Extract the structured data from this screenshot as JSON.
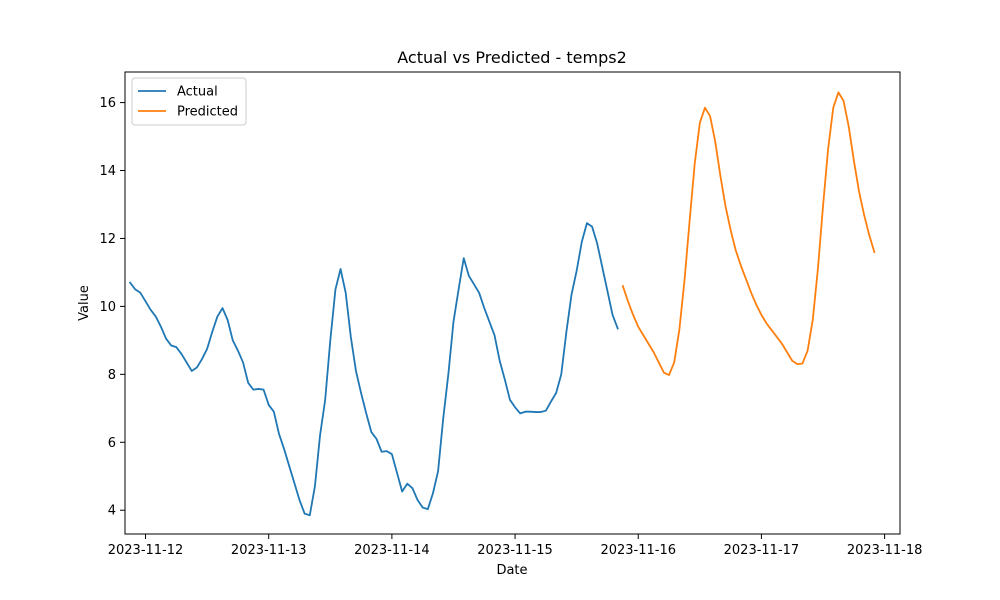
{
  "chart_data": {
    "type": "line",
    "title": "Actual vs Predicted - temps2",
    "xlabel": "Date",
    "ylabel": "Value",
    "xlim": [
      "2023-11-11T20:00",
      "2023-11-18T03:00"
    ],
    "ylim": [
      3.3,
      16.9
    ],
    "x_ticks": [
      "2023-11-12",
      "2023-11-13",
      "2023-11-14",
      "2023-11-15",
      "2023-11-16",
      "2023-11-17",
      "2023-11-18"
    ],
    "y_ticks": [
      4,
      6,
      8,
      10,
      12,
      14,
      16
    ],
    "grid": false,
    "legend_position": "upper-left",
    "series": [
      {
        "name": "Actual",
        "color": "#1f77b4",
        "points": [
          [
            "2023-11-11T21:00",
            10.7
          ],
          [
            "2023-11-11T22:00",
            10.5
          ],
          [
            "2023-11-11T23:00",
            10.4
          ],
          [
            "2023-11-12T00:00",
            10.15
          ],
          [
            "2023-11-12T01:00",
            9.9
          ],
          [
            "2023-11-12T02:00",
            9.7
          ],
          [
            "2023-11-12T03:00",
            9.4
          ],
          [
            "2023-11-12T04:00",
            9.05
          ],
          [
            "2023-11-12T05:00",
            8.85
          ],
          [
            "2023-11-12T06:00",
            8.8
          ],
          [
            "2023-11-12T07:00",
            8.6
          ],
          [
            "2023-11-12T08:00",
            8.35
          ],
          [
            "2023-11-12T09:00",
            8.1
          ],
          [
            "2023-11-12T10:00",
            8.2
          ],
          [
            "2023-11-12T11:00",
            8.45
          ],
          [
            "2023-11-12T12:00",
            8.75
          ],
          [
            "2023-11-12T13:00",
            9.25
          ],
          [
            "2023-11-12T14:00",
            9.7
          ],
          [
            "2023-11-12T15:00",
            9.95
          ],
          [
            "2023-11-12T16:00",
            9.6
          ],
          [
            "2023-11-12T17:00",
            9.0
          ],
          [
            "2023-11-12T18:00",
            8.7
          ],
          [
            "2023-11-12T19:00",
            8.35
          ],
          [
            "2023-11-12T20:00",
            7.75
          ],
          [
            "2023-11-12T21:00",
            7.55
          ],
          [
            "2023-11-12T22:00",
            7.57
          ],
          [
            "2023-11-12T23:00",
            7.55
          ],
          [
            "2023-11-13T00:00",
            7.1
          ],
          [
            "2023-11-13T01:00",
            6.9
          ],
          [
            "2023-11-13T02:00",
            6.25
          ],
          [
            "2023-11-13T03:00",
            5.8
          ],
          [
            "2023-11-13T04:00",
            5.3
          ],
          [
            "2023-11-13T05:00",
            4.8
          ],
          [
            "2023-11-13T06:00",
            4.3
          ],
          [
            "2023-11-13T07:00",
            3.9
          ],
          [
            "2023-11-13T08:00",
            3.85
          ],
          [
            "2023-11-13T09:00",
            4.7
          ],
          [
            "2023-11-13T10:00",
            6.2
          ],
          [
            "2023-11-13T11:00",
            7.25
          ],
          [
            "2023-11-13T12:00",
            9.0
          ],
          [
            "2023-11-13T13:00",
            10.5
          ],
          [
            "2023-11-13T14:00",
            11.1
          ],
          [
            "2023-11-13T15:00",
            10.4
          ],
          [
            "2023-11-13T16:00",
            9.1
          ],
          [
            "2023-11-13T17:00",
            8.1
          ],
          [
            "2023-11-13T18:00",
            7.45
          ],
          [
            "2023-11-13T19:00",
            6.85
          ],
          [
            "2023-11-13T20:00",
            6.3
          ],
          [
            "2023-11-13T21:00",
            6.1
          ],
          [
            "2023-11-13T22:00",
            5.72
          ],
          [
            "2023-11-13T23:00",
            5.74
          ],
          [
            "2023-11-14T00:00",
            5.65
          ],
          [
            "2023-11-14T01:00",
            5.1
          ],
          [
            "2023-11-14T02:00",
            4.55
          ],
          [
            "2023-11-14T03:00",
            4.78
          ],
          [
            "2023-11-14T04:00",
            4.65
          ],
          [
            "2023-11-14T05:00",
            4.3
          ],
          [
            "2023-11-14T06:00",
            4.08
          ],
          [
            "2023-11-14T07:00",
            4.03
          ],
          [
            "2023-11-14T08:00",
            4.5
          ],
          [
            "2023-11-14T09:00",
            5.15
          ],
          [
            "2023-11-14T10:00",
            6.7
          ],
          [
            "2023-11-14T11:00",
            8.0
          ],
          [
            "2023-11-14T12:00",
            9.55
          ],
          [
            "2023-11-14T13:00",
            10.5
          ],
          [
            "2023-11-14T14:00",
            11.42
          ],
          [
            "2023-11-14T15:00",
            10.9
          ],
          [
            "2023-11-14T16:00",
            10.65
          ],
          [
            "2023-11-14T17:00",
            10.4
          ],
          [
            "2023-11-14T18:00",
            9.95
          ],
          [
            "2023-11-14T19:00",
            9.55
          ],
          [
            "2023-11-14T20:00",
            9.15
          ],
          [
            "2023-11-14T21:00",
            8.4
          ],
          [
            "2023-11-14T22:00",
            7.85
          ],
          [
            "2023-11-14T23:00",
            7.25
          ],
          [
            "2023-11-15T00:00",
            7.03
          ],
          [
            "2023-11-15T01:00",
            6.85
          ],
          [
            "2023-11-15T02:00",
            6.9
          ],
          [
            "2023-11-15T03:00",
            6.9
          ],
          [
            "2023-11-15T04:00",
            6.89
          ],
          [
            "2023-11-15T05:00",
            6.89
          ],
          [
            "2023-11-15T06:00",
            6.93
          ],
          [
            "2023-11-15T07:00",
            7.2
          ],
          [
            "2023-11-15T08:00",
            7.45
          ],
          [
            "2023-11-15T09:00",
            8.0
          ],
          [
            "2023-11-15T10:00",
            9.25
          ],
          [
            "2023-11-15T11:00",
            10.35
          ],
          [
            "2023-11-15T12:00",
            11.05
          ],
          [
            "2023-11-15T13:00",
            11.9
          ],
          [
            "2023-11-15T14:00",
            12.45
          ],
          [
            "2023-11-15T15:00",
            12.35
          ],
          [
            "2023-11-15T16:00",
            11.85
          ],
          [
            "2023-11-15T17:00",
            11.15
          ],
          [
            "2023-11-15T18:00",
            10.45
          ],
          [
            "2023-11-15T19:00",
            9.75
          ],
          [
            "2023-11-15T20:00",
            9.35
          ]
        ]
      },
      {
        "name": "Predicted",
        "color": "#ff7f0e",
        "points": [
          [
            "2023-11-15T21:00",
            10.6
          ],
          [
            "2023-11-15T22:00",
            10.15
          ],
          [
            "2023-11-15T23:00",
            9.75
          ],
          [
            "2023-11-16T00:00",
            9.4
          ],
          [
            "2023-11-16T01:00",
            9.15
          ],
          [
            "2023-11-16T02:00",
            8.9
          ],
          [
            "2023-11-16T03:00",
            8.65
          ],
          [
            "2023-11-16T04:00",
            8.35
          ],
          [
            "2023-11-16T05:00",
            8.05
          ],
          [
            "2023-11-16T06:00",
            7.98
          ],
          [
            "2023-11-16T07:00",
            8.35
          ],
          [
            "2023-11-16T08:00",
            9.3
          ],
          [
            "2023-11-16T09:00",
            10.75
          ],
          [
            "2023-11-16T10:00",
            12.5
          ],
          [
            "2023-11-16T11:00",
            14.2
          ],
          [
            "2023-11-16T12:00",
            15.4
          ],
          [
            "2023-11-16T13:00",
            15.85
          ],
          [
            "2023-11-16T14:00",
            15.6
          ],
          [
            "2023-11-16T15:00",
            14.85
          ],
          [
            "2023-11-16T16:00",
            13.85
          ],
          [
            "2023-11-16T17:00",
            12.95
          ],
          [
            "2023-11-16T18:00",
            12.25
          ],
          [
            "2023-11-16T19:00",
            11.65
          ],
          [
            "2023-11-16T20:00",
            11.2
          ],
          [
            "2023-11-16T21:00",
            10.8
          ],
          [
            "2023-11-16T22:00",
            10.4
          ],
          [
            "2023-11-16T23:00",
            10.05
          ],
          [
            "2023-11-17T00:00",
            9.75
          ],
          [
            "2023-11-17T01:00",
            9.5
          ],
          [
            "2023-11-17T02:00",
            9.3
          ],
          [
            "2023-11-17T03:00",
            9.1
          ],
          [
            "2023-11-17T04:00",
            8.9
          ],
          [
            "2023-11-17T05:00",
            8.65
          ],
          [
            "2023-11-17T06:00",
            8.4
          ],
          [
            "2023-11-17T07:00",
            8.3
          ],
          [
            "2023-11-17T08:00",
            8.32
          ],
          [
            "2023-11-17T09:00",
            8.7
          ],
          [
            "2023-11-17T10:00",
            9.6
          ],
          [
            "2023-11-17T11:00",
            11.1
          ],
          [
            "2023-11-17T12:00",
            12.95
          ],
          [
            "2023-11-17T13:00",
            14.65
          ],
          [
            "2023-11-17T14:00",
            15.85
          ],
          [
            "2023-11-17T15:00",
            16.3
          ],
          [
            "2023-11-17T16:00",
            16.05
          ],
          [
            "2023-11-17T17:00",
            15.3
          ],
          [
            "2023-11-17T18:00",
            14.3
          ],
          [
            "2023-11-17T19:00",
            13.4
          ],
          [
            "2023-11-17T20:00",
            12.7
          ],
          [
            "2023-11-17T21:00",
            12.1
          ],
          [
            "2023-11-17T22:00",
            11.6
          ]
        ]
      }
    ]
  }
}
